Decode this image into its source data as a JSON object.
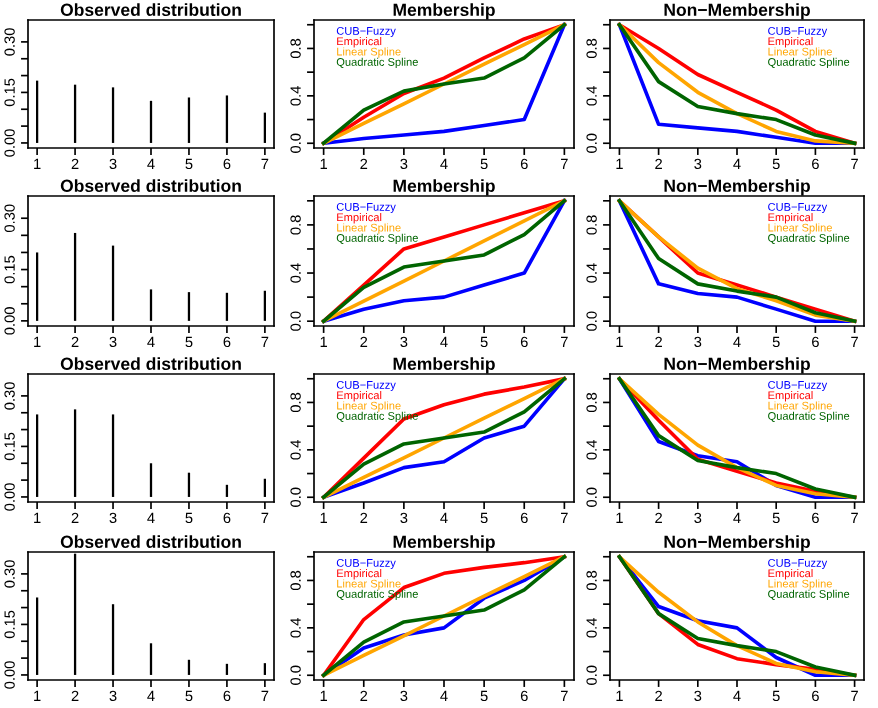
{
  "chart_data": [
    {
      "type": "bar",
      "title": "Observed distribution",
      "x": [
        1,
        2,
        3,
        4,
        5,
        6,
        7
      ],
      "values": [
        0.185,
        0.173,
        0.165,
        0.125,
        0.135,
        0.141,
        0.09
      ],
      "color": "#000000",
      "xlim": [
        0.76,
        7.24
      ],
      "xticks": [
        1,
        2,
        3,
        4,
        5,
        6,
        7
      ],
      "ylim": [
        -0.015,
        0.365
      ],
      "yticks": [
        {
          "value": 0,
          "label": "0.00"
        },
        {
          "value": 0.05,
          "label": null
        },
        {
          "value": 0.1,
          "label": null
        },
        {
          "value": 0.15,
          "label": "0.15"
        },
        {
          "value": 0.2,
          "label": null
        },
        {
          "value": 0.25,
          "label": null
        },
        {
          "value": 0.3,
          "label": "0.30"
        }
      ],
      "grid": false,
      "legend": false
    },
    {
      "type": "line",
      "title": "Membership",
      "x": [
        1,
        2,
        3,
        4,
        5,
        6,
        7
      ],
      "series": [
        {
          "name": "CUB−Fuzzy",
          "color": "#0000ff",
          "values": [
            0,
            0.04,
            0.07,
            0.1,
            0.15,
            0.2,
            1
          ]
        },
        {
          "name": "Empirical",
          "color": "#ff0000",
          "values": [
            0,
            0.22,
            0.42,
            0.55,
            0.72,
            0.88,
            1
          ]
        },
        {
          "name": "Linear Spline",
          "color": "#ffa500",
          "values": [
            0,
            0.167,
            0.333,
            0.5,
            0.667,
            0.833,
            1
          ]
        },
        {
          "name": "Quadratic Spline",
          "color": "#006400",
          "values": [
            0,
            0.28,
            0.44,
            0.5,
            0.55,
            0.72,
            1
          ]
        }
      ],
      "xlim": [
        0.76,
        7.24
      ],
      "xticks": [
        1,
        2,
        3,
        4,
        5,
        6,
        7
      ],
      "ylim": [
        -0.04,
        1.04
      ],
      "yticks": [
        {
          "value": 0,
          "label": "0.0"
        },
        {
          "value": 0.2,
          "label": null
        },
        {
          "value": 0.4,
          "label": "0.4"
        },
        {
          "value": 0.6,
          "label": null
        },
        {
          "value": 0.8,
          "label": "0.8"
        },
        {
          "value": 1,
          "label": null
        }
      ],
      "grid": false,
      "legend": "top left",
      "line_style": "solid",
      "marker": "none"
    },
    {
      "type": "line",
      "title": "Non−Membership",
      "x": [
        1,
        2,
        3,
        4,
        5,
        6,
        7
      ],
      "series": [
        {
          "name": "CUB−Fuzzy",
          "color": "#0000ff",
          "values": [
            1,
            0.16,
            0.13,
            0.1,
            0.05,
            0,
            0
          ]
        },
        {
          "name": "Empirical",
          "color": "#ff0000",
          "values": [
            1,
            0.8,
            0.58,
            0.43,
            0.28,
            0.1,
            0
          ]
        },
        {
          "name": "Linear Spline",
          "color": "#ffa500",
          "values": [
            1,
            0.68,
            0.43,
            0.25,
            0.1,
            0.02,
            0
          ]
        },
        {
          "name": "Quadratic Spline",
          "color": "#006400",
          "values": [
            1,
            0.52,
            0.31,
            0.25,
            0.2,
            0.07,
            0
          ]
        }
      ],
      "xlim": [
        0.76,
        7.24
      ],
      "xticks": [
        1,
        2,
        3,
        4,
        5,
        6,
        7
      ],
      "ylim": [
        -0.04,
        1.04
      ],
      "yticks": [
        {
          "value": 0,
          "label": "0.0"
        },
        {
          "value": 0.2,
          "label": null
        },
        {
          "value": 0.4,
          "label": "0.4"
        },
        {
          "value": 0.6,
          "label": null
        },
        {
          "value": 0.8,
          "label": "0.8"
        },
        {
          "value": 1,
          "label": null
        }
      ],
      "grid": false,
      "legend": "top right",
      "line_style": "solid",
      "marker": "none"
    },
    {
      "type": "bar",
      "title": "Observed distribution",
      "x": [
        1,
        2,
        3,
        4,
        5,
        6,
        7
      ],
      "values": [
        0.2,
        0.257,
        0.22,
        0.092,
        0.084,
        0.082,
        0.088
      ],
      "color": "#000000",
      "xlim": [
        0.76,
        7.24
      ],
      "xticks": [
        1,
        2,
        3,
        4,
        5,
        6,
        7
      ],
      "ylim": [
        -0.015,
        0.365
      ],
      "yticks": [
        {
          "value": 0,
          "label": "0.00"
        },
        {
          "value": 0.05,
          "label": null
        },
        {
          "value": 0.1,
          "label": null
        },
        {
          "value": 0.15,
          "label": "0.15"
        },
        {
          "value": 0.2,
          "label": null
        },
        {
          "value": 0.25,
          "label": null
        },
        {
          "value": 0.3,
          "label": "0.30"
        }
      ],
      "grid": false,
      "legend": false
    },
    {
      "type": "line",
      "title": "Membership",
      "x": [
        1,
        2,
        3,
        4,
        5,
        6,
        7
      ],
      "series": [
        {
          "name": "CUB−Fuzzy",
          "color": "#0000ff",
          "values": [
            0,
            0.1,
            0.17,
            0.2,
            0.3,
            0.4,
            1
          ]
        },
        {
          "name": "Empirical",
          "color": "#ff0000",
          "values": [
            0,
            0.3,
            0.6,
            0.7,
            0.8,
            0.9,
            1
          ]
        },
        {
          "name": "Linear Spline",
          "color": "#ffa500",
          "values": [
            0,
            0.167,
            0.333,
            0.5,
            0.667,
            0.833,
            1
          ]
        },
        {
          "name": "Quadratic Spline",
          "color": "#006400",
          "values": [
            0,
            0.28,
            0.45,
            0.5,
            0.55,
            0.72,
            1
          ]
        }
      ],
      "xlim": [
        0.76,
        7.24
      ],
      "xticks": [
        1,
        2,
        3,
        4,
        5,
        6,
        7
      ],
      "ylim": [
        -0.04,
        1.04
      ],
      "yticks": [
        {
          "value": 0,
          "label": "0.0"
        },
        {
          "value": 0.2,
          "label": null
        },
        {
          "value": 0.4,
          "label": "0.4"
        },
        {
          "value": 0.6,
          "label": null
        },
        {
          "value": 0.8,
          "label": "0.8"
        },
        {
          "value": 1,
          "label": null
        }
      ],
      "grid": false,
      "legend": "top left",
      "line_style": "solid",
      "marker": "none"
    },
    {
      "type": "line",
      "title": "Non−Membership",
      "x": [
        1,
        2,
        3,
        4,
        5,
        6,
        7
      ],
      "series": [
        {
          "name": "CUB−Fuzzy",
          "color": "#0000ff",
          "values": [
            1,
            0.31,
            0.23,
            0.2,
            0.1,
            0,
            0
          ]
        },
        {
          "name": "Empirical",
          "color": "#ff0000",
          "values": [
            1,
            0.7,
            0.4,
            0.3,
            0.2,
            0.1,
            0
          ]
        },
        {
          "name": "Linear Spline",
          "color": "#ffa500",
          "values": [
            1,
            0.7,
            0.44,
            0.27,
            0.17,
            0.05,
            0
          ]
        },
        {
          "name": "Quadratic Spline",
          "color": "#006400",
          "values": [
            1,
            0.52,
            0.31,
            0.25,
            0.2,
            0.07,
            0
          ]
        }
      ],
      "xlim": [
        0.76,
        7.24
      ],
      "xticks": [
        1,
        2,
        3,
        4,
        5,
        6,
        7
      ],
      "ylim": [
        -0.04,
        1.04
      ],
      "yticks": [
        {
          "value": 0,
          "label": "0.0"
        },
        {
          "value": 0.2,
          "label": null
        },
        {
          "value": 0.4,
          "label": "0.4"
        },
        {
          "value": 0.6,
          "label": null
        },
        {
          "value": 0.8,
          "label": "0.8"
        },
        {
          "value": 1,
          "label": null
        }
      ],
      "grid": false,
      "legend": "top right",
      "line_style": "solid",
      "marker": "none"
    },
    {
      "type": "bar",
      "title": "Observed distribution",
      "x": [
        1,
        2,
        3,
        4,
        5,
        6,
        7
      ],
      "values": [
        0.245,
        0.26,
        0.245,
        0.1,
        0.072,
        0.036,
        0.054
      ],
      "color": "#000000",
      "xlim": [
        0.76,
        7.24
      ],
      "xticks": [
        1,
        2,
        3,
        4,
        5,
        6,
        7
      ],
      "ylim": [
        -0.015,
        0.365
      ],
      "yticks": [
        {
          "value": 0,
          "label": "0.00"
        },
        {
          "value": 0.05,
          "label": null
        },
        {
          "value": 0.1,
          "label": null
        },
        {
          "value": 0.15,
          "label": "0.15"
        },
        {
          "value": 0.2,
          "label": null
        },
        {
          "value": 0.25,
          "label": null
        },
        {
          "value": 0.3,
          "label": "0.30"
        }
      ],
      "grid": false,
      "legend": false
    },
    {
      "type": "line",
      "title": "Membership",
      "x": [
        1,
        2,
        3,
        4,
        5,
        6,
        7
      ],
      "series": [
        {
          "name": "CUB−Fuzzy",
          "color": "#0000ff",
          "values": [
            0,
            0.12,
            0.25,
            0.3,
            0.5,
            0.6,
            1
          ]
        },
        {
          "name": "Empirical",
          "color": "#ff0000",
          "values": [
            0,
            0.33,
            0.66,
            0.78,
            0.87,
            0.93,
            1
          ]
        },
        {
          "name": "Linear Spline",
          "color": "#ffa500",
          "values": [
            0,
            0.167,
            0.333,
            0.5,
            0.667,
            0.833,
            1
          ]
        },
        {
          "name": "Quadratic Spline",
          "color": "#006400",
          "values": [
            0,
            0.28,
            0.45,
            0.5,
            0.55,
            0.72,
            1
          ]
        }
      ],
      "xlim": [
        0.76,
        7.24
      ],
      "xticks": [
        1,
        2,
        3,
        4,
        5,
        6,
        7
      ],
      "ylim": [
        -0.04,
        1.04
      ],
      "yticks": [
        {
          "value": 0,
          "label": "0.0"
        },
        {
          "value": 0.2,
          "label": null
        },
        {
          "value": 0.4,
          "label": "0.4"
        },
        {
          "value": 0.6,
          "label": null
        },
        {
          "value": 0.8,
          "label": "0.8"
        },
        {
          "value": 1,
          "label": null
        }
      ],
      "grid": false,
      "legend": "top left",
      "line_style": "solid",
      "marker": "none"
    },
    {
      "type": "line",
      "title": "Non−Membership",
      "x": [
        1,
        2,
        3,
        4,
        5,
        6,
        7
      ],
      "series": [
        {
          "name": "CUB−Fuzzy",
          "color": "#0000ff",
          "values": [
            1,
            0.47,
            0.35,
            0.3,
            0.1,
            0,
            0
          ]
        },
        {
          "name": "Empirical",
          "color": "#ff0000",
          "values": [
            1,
            0.65,
            0.32,
            0.22,
            0.12,
            0.05,
            0
          ]
        },
        {
          "name": "Linear Spline",
          "color": "#ffa500",
          "values": [
            1,
            0.7,
            0.44,
            0.25,
            0.1,
            0.03,
            0
          ]
        },
        {
          "name": "Quadratic Spline",
          "color": "#006400",
          "values": [
            1,
            0.52,
            0.31,
            0.25,
            0.2,
            0.07,
            0
          ]
        }
      ],
      "xlim": [
        0.76,
        7.24
      ],
      "xticks": [
        1,
        2,
        3,
        4,
        5,
        6,
        7
      ],
      "ylim": [
        -0.04,
        1.04
      ],
      "yticks": [
        {
          "value": 0,
          "label": "0.0"
        },
        {
          "value": 0.2,
          "label": null
        },
        {
          "value": 0.4,
          "label": "0.4"
        },
        {
          "value": 0.6,
          "label": null
        },
        {
          "value": 0.8,
          "label": "0.8"
        },
        {
          "value": 1,
          "label": null
        }
      ],
      "grid": false,
      "legend": "top right",
      "line_style": "solid",
      "marker": "none"
    },
    {
      "type": "bar",
      "title": "Observed distribution",
      "x": [
        1,
        2,
        3,
        4,
        5,
        6,
        7
      ],
      "values": [
        0.23,
        0.36,
        0.21,
        0.094,
        0.045,
        0.033,
        0.035
      ],
      "color": "#000000",
      "xlim": [
        0.76,
        7.24
      ],
      "xticks": [
        1,
        2,
        3,
        4,
        5,
        6,
        7
      ],
      "ylim": [
        -0.015,
        0.365
      ],
      "yticks": [
        {
          "value": 0,
          "label": "0.00"
        },
        {
          "value": 0.05,
          "label": null
        },
        {
          "value": 0.1,
          "label": null
        },
        {
          "value": 0.15,
          "label": "0.15"
        },
        {
          "value": 0.2,
          "label": null
        },
        {
          "value": 0.25,
          "label": null
        },
        {
          "value": 0.3,
          "label": "0.30"
        }
      ],
      "grid": false,
      "legend": false
    },
    {
      "type": "line",
      "title": "Membership",
      "x": [
        1,
        2,
        3,
        4,
        5,
        6,
        7
      ],
      "series": [
        {
          "name": "CUB−Fuzzy",
          "color": "#0000ff",
          "values": [
            0,
            0.23,
            0.34,
            0.4,
            0.65,
            0.8,
            1
          ]
        },
        {
          "name": "Empirical",
          "color": "#ff0000",
          "values": [
            0,
            0.47,
            0.74,
            0.86,
            0.91,
            0.95,
            1
          ]
        },
        {
          "name": "Linear Spline",
          "color": "#ffa500",
          "values": [
            0,
            0.167,
            0.333,
            0.5,
            0.667,
            0.833,
            1
          ]
        },
        {
          "name": "Quadratic Spline",
          "color": "#006400",
          "values": [
            0,
            0.28,
            0.45,
            0.5,
            0.55,
            0.72,
            1
          ]
        }
      ],
      "xlim": [
        0.76,
        7.24
      ],
      "xticks": [
        1,
        2,
        3,
        4,
        5,
        6,
        7
      ],
      "ylim": [
        -0.04,
        1.04
      ],
      "yticks": [
        {
          "value": 0,
          "label": "0.0"
        },
        {
          "value": 0.2,
          "label": null
        },
        {
          "value": 0.4,
          "label": "0.4"
        },
        {
          "value": 0.6,
          "label": null
        },
        {
          "value": 0.8,
          "label": "0.8"
        },
        {
          "value": 1,
          "label": null
        }
      ],
      "grid": false,
      "legend": "top left",
      "line_style": "solid",
      "marker": "none"
    },
    {
      "type": "line",
      "title": "Non−Membership",
      "x": [
        1,
        2,
        3,
        4,
        5,
        6,
        7
      ],
      "series": [
        {
          "name": "CUB−Fuzzy",
          "color": "#0000ff",
          "values": [
            1,
            0.58,
            0.46,
            0.4,
            0.15,
            0,
            0
          ]
        },
        {
          "name": "Empirical",
          "color": "#ff0000",
          "values": [
            1,
            0.52,
            0.26,
            0.14,
            0.09,
            0.05,
            0
          ]
        },
        {
          "name": "Linear Spline",
          "color": "#ffa500",
          "values": [
            1,
            0.7,
            0.45,
            0.25,
            0.1,
            0.03,
            0
          ]
        },
        {
          "name": "Quadratic Spline",
          "color": "#006400",
          "values": [
            1,
            0.52,
            0.31,
            0.25,
            0.2,
            0.07,
            0
          ]
        }
      ],
      "xlim": [
        0.76,
        7.24
      ],
      "xticks": [
        1,
        2,
        3,
        4,
        5,
        6,
        7
      ],
      "ylim": [
        -0.04,
        1.04
      ],
      "yticks": [
        {
          "value": 0,
          "label": "0.0"
        },
        {
          "value": 0.2,
          "label": null
        },
        {
          "value": 0.4,
          "label": "0.4"
        },
        {
          "value": 0.6,
          "label": null
        },
        {
          "value": 0.8,
          "label": "0.8"
        },
        {
          "value": 1,
          "label": null
        }
      ],
      "grid": false,
      "legend": "top right",
      "line_style": "solid",
      "marker": "none"
    }
  ]
}
